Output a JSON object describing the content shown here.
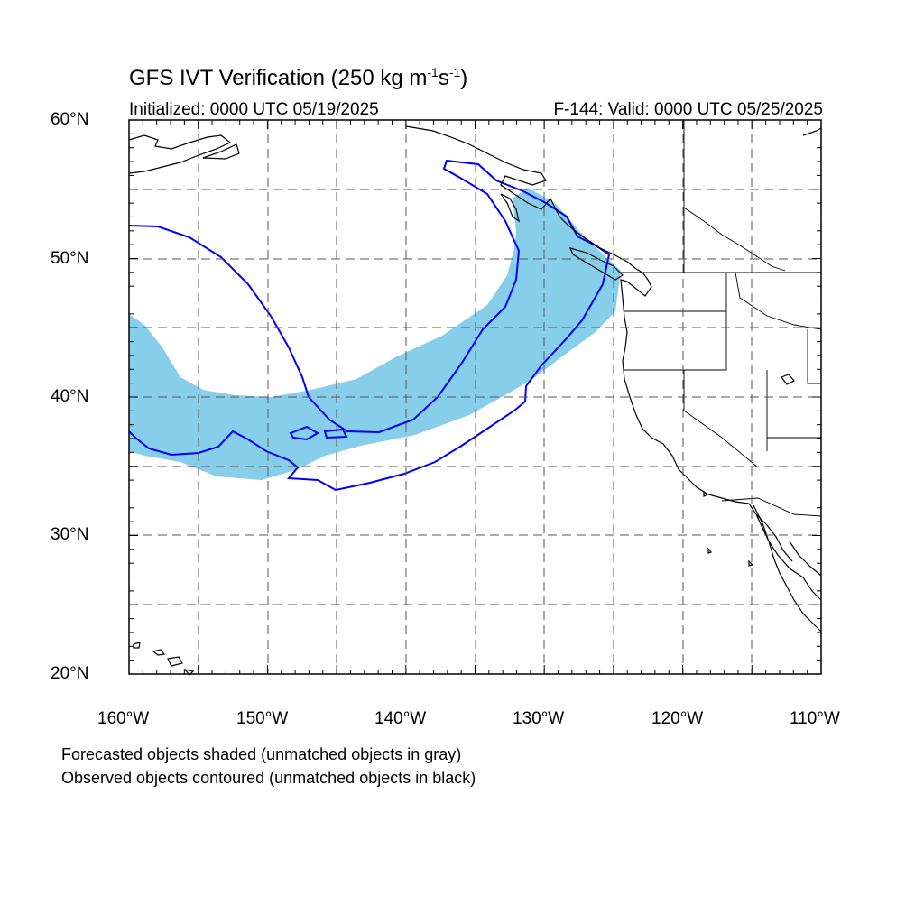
{
  "title": {
    "main": "GFS IVT Verification (250 kg m",
    "exp1": "-1",
    "mid": "s",
    "exp2": "-1",
    "end": ")"
  },
  "subtitle_left": "Initialized: 0000 UTC 05/19/2025",
  "subtitle_right": "F-144: Valid: 0000 UTC 05/25/2025",
  "lat_labels": [
    "60°N",
    "50°N",
    "40°N",
    "30°N",
    "20°N"
  ],
  "lon_labels": [
    "160°W",
    "150°W",
    "140°W",
    "130°W",
    "120°W",
    "110°W"
  ],
  "footnotes": [
    "Forecasted objects shaded (unmatched objects in gray)",
    "Observed objects contoured (unmatched objects in black)"
  ],
  "colors": {
    "forecast_shade": "#87ceeb",
    "observed_contour": "#0000ff",
    "coast": "#000000",
    "grid": "#555555"
  },
  "map_extent": {
    "lon_min": -160,
    "lon_max": -110,
    "lat_min": 20,
    "lat_max": 60
  }
}
